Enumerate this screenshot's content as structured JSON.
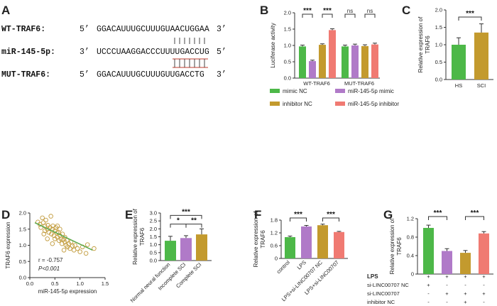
{
  "panels": [
    "A",
    "B",
    "C",
    "D",
    "E",
    "F",
    "G"
  ],
  "panel_a": {
    "rows": [
      {
        "name": "WT-TRAF6:",
        "p1": "5’",
        "seq": "GGACAUUUGCUUUGUAACUGGAA",
        "p2": "3’"
      },
      {
        "name": "miR-145-5p:",
        "p1": "3’",
        "seq": "UCCCUAAGGACCCUUUUGACCUG",
        "p2": "5’"
      },
      {
        "name": "MUT-TRAF6:",
        "p1": "5’",
        "seq": "GGACAUUUGCUUUGUUGACCTG",
        "p2": "3’"
      }
    ]
  },
  "colors": {
    "green": "#4db848",
    "purple": "#b07ac8",
    "gold": "#c39a2e",
    "salmon": "#f07a72",
    "line": "#5aa84a",
    "scatter": "#c29b3c"
  },
  "chart_data": [
    {
      "panel": "B",
      "type": "bar",
      "categories": [
        "WT-TRAF6",
        "MUT-TRAF6"
      ],
      "series": [
        {
          "name": "mimic NC",
          "values": [
            0.97,
            0.97
          ],
          "err": [
            0.04,
            0.04
          ]
        },
        {
          "name": "miR-145-5p mimic",
          "values": [
            0.52,
            1.0
          ],
          "err": [
            0.03,
            0.04
          ]
        },
        {
          "name": "inhibitor NC",
          "values": [
            1.02,
            0.98
          ],
          "err": [
            0.03,
            0.04
          ]
        },
        {
          "name": "miR-145-5p inhibitor",
          "values": [
            1.47,
            1.03
          ],
          "err": [
            0.04,
            0.04
          ]
        }
      ],
      "ylabel": "Luciferase activity",
      "ylim": [
        0,
        2.0
      ],
      "yticks": [
        "0.0",
        "0.5",
        "1.0",
        "1.5",
        "2.0"
      ],
      "significance": [
        "***",
        "***",
        "ns",
        "ns"
      ]
    },
    {
      "panel": "C",
      "type": "bar",
      "categories": [
        "HS",
        "SCI"
      ],
      "values": [
        1.0,
        1.35
      ],
      "err": [
        0.2,
        0.25
      ],
      "ylabel": "Relative expression of TRAF6",
      "ylim": [
        0,
        2.0
      ],
      "yticks": [
        "0.0",
        "0.5",
        "1.0",
        "1.5",
        "2.0"
      ],
      "significance": [
        "***"
      ]
    },
    {
      "panel": "D",
      "type": "scatter",
      "xlabel": "miR-145-5p expression",
      "ylabel": "TRAF6 expression",
      "xlim": [
        0,
        1.5
      ],
      "ylim": [
        0,
        2.0
      ],
      "xticks": [
        "0.0",
        "0.5",
        "1.0",
        "1.5"
      ],
      "yticks": [
        "0.0",
        "0.5",
        "1.0",
        "1.5",
        "2.0"
      ],
      "annotation_r": "r = -0.757",
      "annotation_p": "P<0.001",
      "fit": {
        "x": [
          0.1,
          1.25
        ],
        "y": [
          1.7,
          0.85
        ]
      },
      "points": [
        [
          0.16,
          1.72
        ],
        [
          0.2,
          1.65
        ],
        [
          0.22,
          1.55
        ],
        [
          0.25,
          1.85
        ],
        [
          0.27,
          1.7
        ],
        [
          0.3,
          1.6
        ],
        [
          0.3,
          1.45
        ],
        [
          0.32,
          1.78
        ],
        [
          0.35,
          1.5
        ],
        [
          0.36,
          1.62
        ],
        [
          0.38,
          1.4
        ],
        [
          0.4,
          1.55
        ],
        [
          0.42,
          1.9
        ],
        [
          0.43,
          1.35
        ],
        [
          0.45,
          1.5
        ],
        [
          0.46,
          1.6
        ],
        [
          0.48,
          1.3
        ],
        [
          0.5,
          1.45
        ],
        [
          0.5,
          1.2
        ],
        [
          0.52,
          1.55
        ],
        [
          0.54,
          1.38
        ],
        [
          0.55,
          1.25
        ],
        [
          0.57,
          1.4
        ],
        [
          0.58,
          1.15
        ],
        [
          0.6,
          1.3
        ],
        [
          0.6,
          1.5
        ],
        [
          0.62,
          1.2
        ],
        [
          0.64,
          1.05
        ],
        [
          0.65,
          1.35
        ],
        [
          0.67,
          1.18
        ],
        [
          0.7,
          1.1
        ],
        [
          0.7,
          1.25
        ],
        [
          0.72,
          1.0
        ],
        [
          0.74,
          1.15
        ],
        [
          0.75,
          0.95
        ],
        [
          0.78,
          1.05
        ],
        [
          0.8,
          0.9
        ],
        [
          0.82,
          1.1
        ],
        [
          0.85,
          0.98
        ],
        [
          0.88,
          0.85
        ],
        [
          0.9,
          1.0
        ],
        [
          0.95,
          0.9
        ],
        [
          1.0,
          0.8
        ],
        [
          1.05,
          0.95
        ],
        [
          1.12,
          0.75
        ],
        [
          1.15,
          1.02
        ],
        [
          1.28,
          0.9
        ],
        [
          0.35,
          1.2
        ],
        [
          0.28,
          1.35
        ],
        [
          0.55,
          1.6
        ],
        [
          0.45,
          1.05
        ],
        [
          0.68,
          0.85
        ]
      ]
    },
    {
      "panel": "E",
      "type": "bar",
      "categories": [
        "Normal neural function",
        "Incomplete SCI",
        "Complete SCI"
      ],
      "values": [
        1.25,
        1.42,
        1.65
      ],
      "err": [
        0.28,
        0.15,
        0.35
      ],
      "ylabel": "Relative expression of TRAF6",
      "ylim": [
        0,
        3.0
      ],
      "yticks": [
        "0.0",
        "0.5",
        "1.0",
        "1.5",
        "2.0",
        "2.5",
        "3.0"
      ],
      "significance": [
        "*",
        "**",
        "***"
      ]
    },
    {
      "panel": "F",
      "type": "bar",
      "categories": [
        "control",
        "LPS",
        "LPS+si-LINC00707 NC",
        "LPS+si-LINC00707"
      ],
      "values": [
        1.0,
        1.5,
        1.56,
        1.24
      ],
      "err": [
        0.05,
        0.05,
        0.05,
        0.03
      ],
      "ylabel": "Relative expression of TRAF6",
      "ylim": [
        0,
        1.8
      ],
      "yticks": [
        "0",
        "0.6",
        "1.2",
        "1.8"
      ],
      "significance": [
        "***",
        "***"
      ]
    },
    {
      "panel": "G",
      "type": "bar",
      "values": [
        1.0,
        0.5,
        0.46,
        0.88
      ],
      "err": [
        0.06,
        0.05,
        0.05,
        0.04
      ],
      "ylabel": "Relative expression of TRAF6",
      "ylim": [
        0,
        1.2
      ],
      "yticks": [
        "0",
        "0.4",
        "0.8",
        "1.2"
      ],
      "significance": [
        "***",
        "***"
      ],
      "table": [
        {
          "label": "LPS",
          "cells": [
            "+",
            "+",
            "+",
            "+"
          ]
        },
        {
          "label": "si-LINC00707 NC",
          "cells": [
            "+",
            "-",
            "-",
            "-"
          ]
        },
        {
          "label": "si-LINC00707",
          "cells": [
            "-",
            "+",
            "+",
            "+"
          ]
        },
        {
          "label": "inhibitor NC",
          "cells": [
            "-",
            "-",
            "+",
            "-"
          ]
        },
        {
          "label": "miR-145-5p inhibitor",
          "cells": [
            "-",
            "-",
            "-",
            "+"
          ]
        }
      ]
    }
  ]
}
